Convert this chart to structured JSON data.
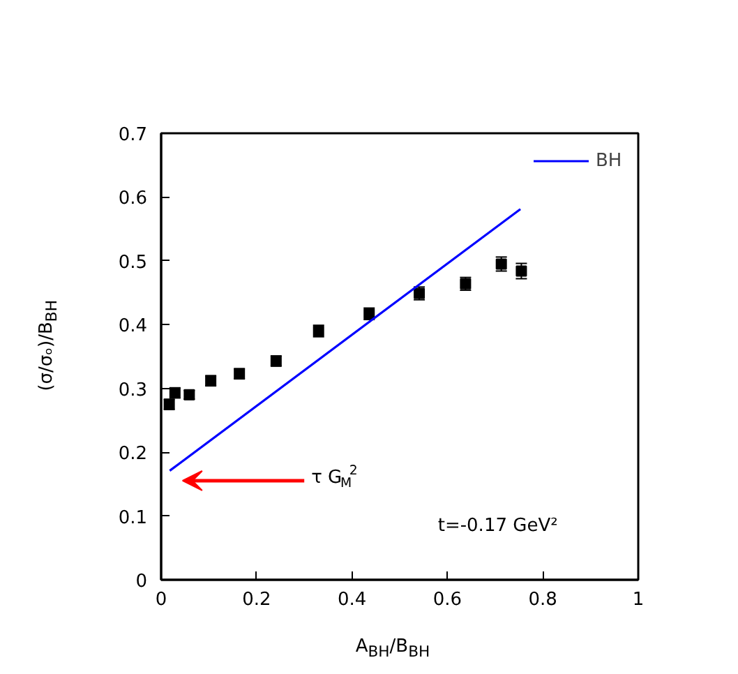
{
  "chart_data": {
    "type": "scatter",
    "xlabel": "A$_{BH}$/B$_{BH}$",
    "ylabel": "(σ/σₒ)/B$_{BH}$",
    "xlim": [
      0,
      1
    ],
    "ylim": [
      0,
      0.7
    ],
    "xticks": [
      0,
      0.2,
      0.4,
      0.6,
      0.8,
      1
    ],
    "yticks": [
      0,
      0.1,
      0.2,
      0.3,
      0.4,
      0.5,
      0.6,
      0.7
    ],
    "grid": false,
    "legend": "top right",
    "annotations": [
      "τ G$_{M}$$^{2}$",
      "t=-0.17 GeV²"
    ],
    "series": [
      {
        "marker": "square",
        "color": "#000000",
        "x": [
          0.017,
          0.029,
          0.059,
          0.104,
          0.164,
          0.241,
          0.33,
          0.436,
          0.541,
          0.638,
          0.713,
          0.755
        ],
        "values": [
          0.275,
          0.293,
          0.29,
          0.312,
          0.323,
          0.343,
          0.39,
          0.417,
          0.449,
          0.464,
          0.495,
          0.484
        ],
        "errors": [
          0.008,
          0.008,
          0.007,
          0.008,
          0.008,
          0.008,
          0.009,
          0.009,
          0.01,
          0.01,
          0.011,
          0.012
        ]
      },
      {
        "type": "line",
        "name": "BH",
        "color": "#0000ff",
        "x": [
          0.018,
          0.753
        ],
        "values": [
          0.171,
          0.581
        ]
      }
    ]
  }
}
